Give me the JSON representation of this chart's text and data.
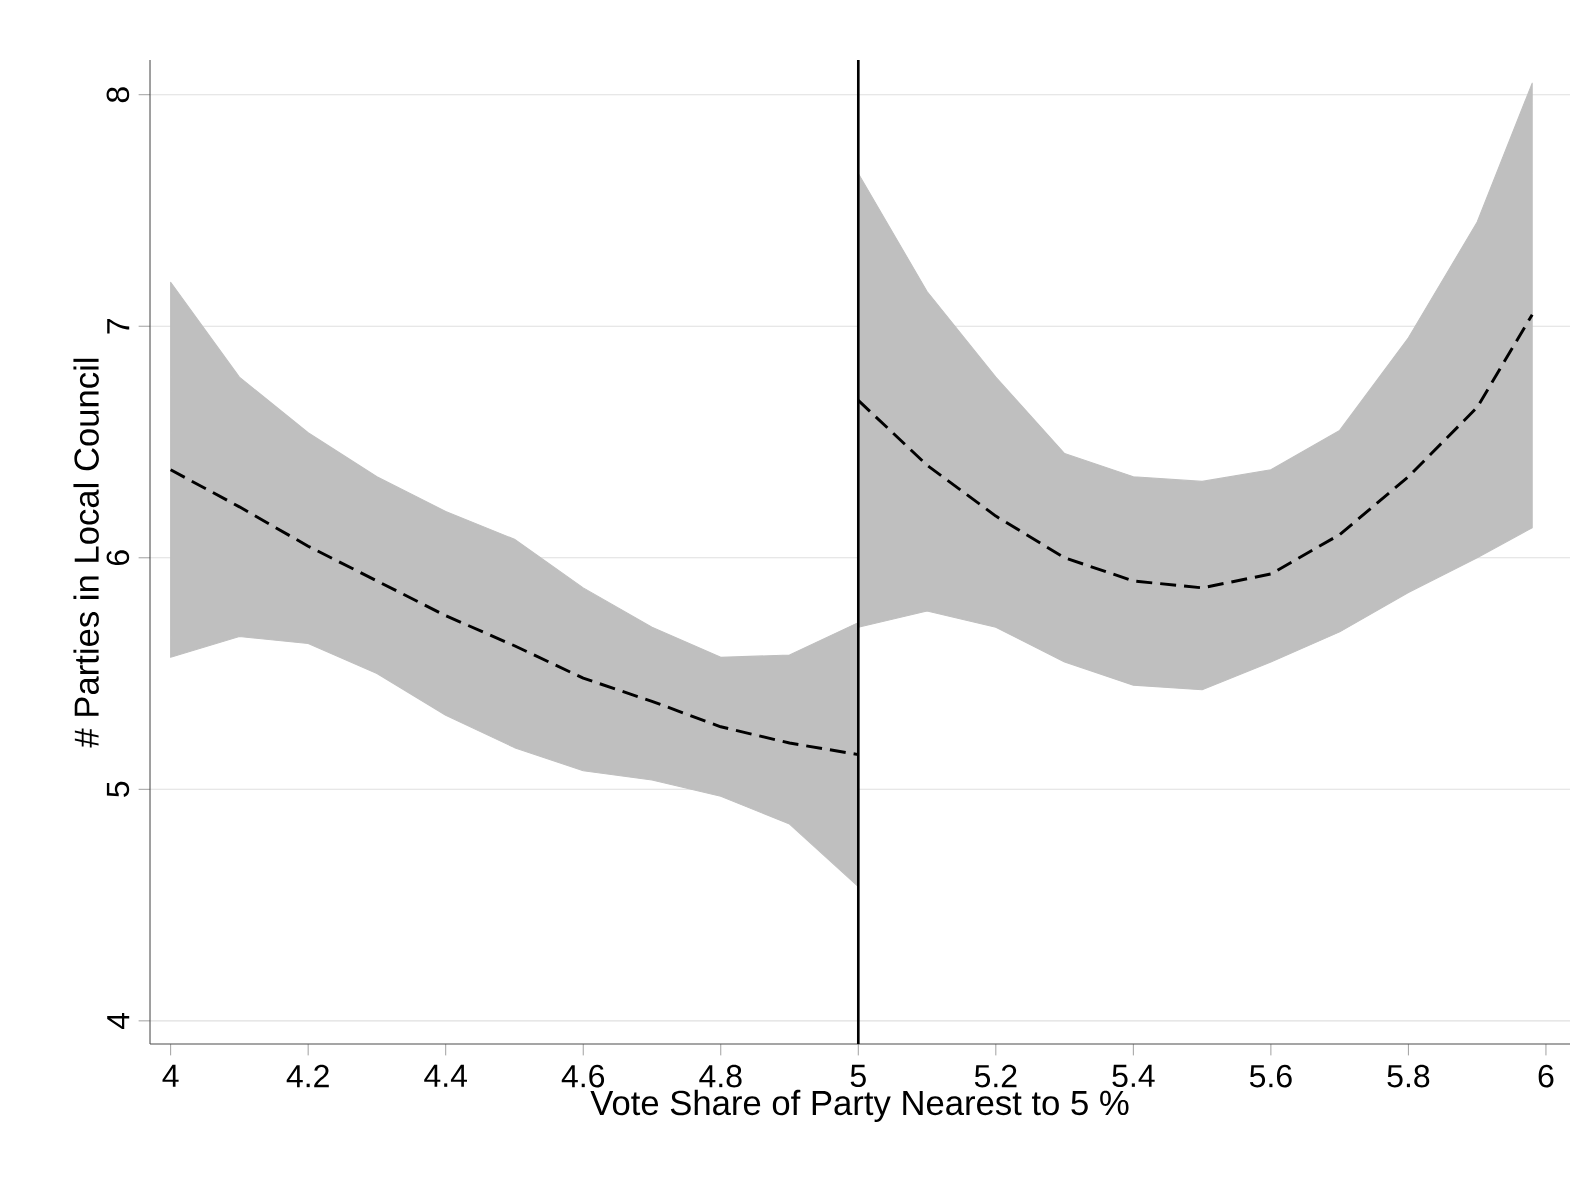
{
  "chart_data": {
    "type": "line",
    "xlabel": "Vote Share of Party Nearest to 5 %",
    "ylabel": "# Parties in Local Council",
    "xlim": [
      3.97,
      6.035
    ],
    "ylim": [
      3.9,
      8.15
    ],
    "xticks": [
      4,
      {
        "value": 4.2,
        "label": "4.2"
      },
      {
        "value": 4.4,
        "label": "4.4"
      },
      {
        "value": 4.6,
        "label": "4.6"
      },
      {
        "value": 4.8,
        "label": "4.8"
      },
      5,
      {
        "value": 5.2,
        "label": "5.2"
      },
      {
        "value": 5.4,
        "label": "5.4"
      },
      {
        "value": 5.6,
        "label": "5.6"
      },
      {
        "value": 5.8,
        "label": "5.8"
      },
      6
    ],
    "yticks": [
      4,
      5,
      6,
      7,
      8
    ],
    "grid": "y",
    "line_style": "dashed",
    "marker": "none",
    "ref_lines": [
      {
        "axis": "x",
        "value": 5,
        "color": "#000000",
        "line_style": "solid"
      }
    ],
    "series": [
      {
        "color": "#000000",
        "x": [
          4,
          4.1,
          4.2,
          4.3,
          4.4,
          4.5,
          4.6,
          4.7,
          4.8,
          4.9,
          5
        ],
        "values": [
          6.38,
          6.22,
          6.05,
          5.9,
          5.75,
          5.62,
          5.48,
          5.38,
          5.27,
          5.2,
          5.15
        ],
        "lower": [
          5.57,
          5.66,
          5.63,
          5.5,
          5.32,
          5.18,
          5.08,
          5.04,
          4.97,
          4.85,
          4.58
        ],
        "upper": [
          7.19,
          6.78,
          6.54,
          6.35,
          6.2,
          6.08,
          5.87,
          5.7,
          5.57,
          5.58,
          5.72
        ]
      },
      {
        "color": "#000000",
        "x": [
          5,
          5.1,
          5.2,
          5.3,
          5.4,
          5.5,
          5.6,
          5.7,
          5.8,
          5.9,
          5.98
        ],
        "values": [
          6.68,
          6.4,
          6.18,
          6.0,
          5.9,
          5.87,
          5.93,
          6.1,
          6.35,
          6.65,
          7.05
        ],
        "lower": [
          5.7,
          5.77,
          5.7,
          5.55,
          5.45,
          5.43,
          5.55,
          5.68,
          5.85,
          6.0,
          6.13
        ],
        "upper": [
          7.66,
          7.15,
          6.78,
          6.45,
          6.35,
          6.33,
          6.38,
          6.55,
          6.95,
          7.45,
          8.05
        ]
      }
    ]
  }
}
